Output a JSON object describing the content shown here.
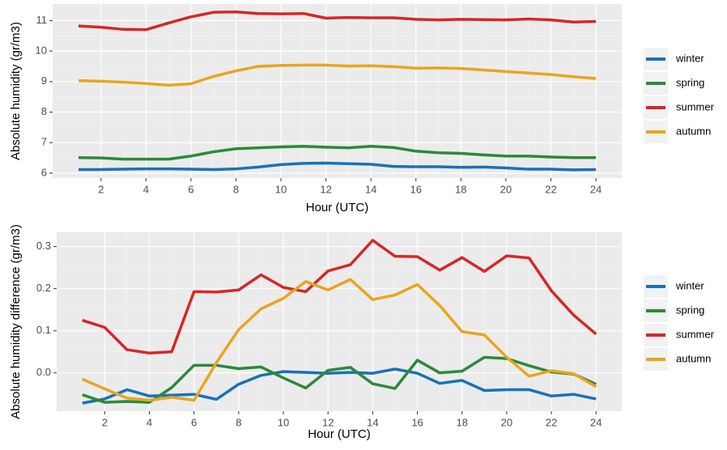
{
  "chart_data": [
    {
      "type": "line",
      "xlabel": "Hour (UTC)",
      "ylabel": "Absolute humidity (gr/m3)",
      "x": [
        1,
        2,
        3,
        4,
        5,
        6,
        7,
        8,
        9,
        10,
        11,
        12,
        13,
        14,
        15,
        16,
        17,
        18,
        19,
        20,
        21,
        22,
        23,
        24
      ],
      "xlim": [
        -0.15,
        25.15
      ],
      "xticks": [
        2,
        4,
        6,
        8,
        10,
        12,
        14,
        16,
        18,
        20,
        22,
        24
      ],
      "ylim": [
        5.84,
        11.54
      ],
      "yticks": [
        6,
        7,
        8,
        9,
        10,
        11
      ],
      "grid": true,
      "legend": "right",
      "series": [
        {
          "name": "winter",
          "color": "#1a72b8",
          "values": [
            6.12,
            6.12,
            6.13,
            6.14,
            6.14,
            6.13,
            6.12,
            6.14,
            6.2,
            6.28,
            6.32,
            6.33,
            6.31,
            6.29,
            6.22,
            6.21,
            6.21,
            6.19,
            6.2,
            6.17,
            6.13,
            6.13,
            6.11,
            6.12
          ]
        },
        {
          "name": "spring",
          "color": "#2a8a3a",
          "values": [
            6.51,
            6.5,
            6.46,
            6.46,
            6.46,
            6.56,
            6.7,
            6.8,
            6.83,
            6.86,
            6.88,
            6.85,
            6.83,
            6.88,
            6.84,
            6.72,
            6.67,
            6.65,
            6.6,
            6.56,
            6.56,
            6.53,
            6.51,
            6.51
          ]
        },
        {
          "name": "summer",
          "color": "#d62728",
          "values": [
            10.82,
            10.78,
            10.71,
            10.7,
            10.92,
            11.12,
            11.27,
            11.28,
            11.23,
            11.22,
            11.23,
            11.08,
            11.1,
            11.09,
            11.09,
            11.04,
            11.02,
            11.04,
            11.03,
            11.02,
            11.05,
            11.02,
            10.95,
            10.97
          ]
        },
        {
          "name": "autumn",
          "color": "#e8a521",
          "values": [
            9.03,
            9.01,
            8.98,
            8.94,
            8.88,
            8.93,
            9.17,
            9.35,
            9.5,
            9.53,
            9.54,
            9.54,
            9.51,
            9.52,
            9.49,
            9.44,
            9.45,
            9.43,
            9.38,
            9.33,
            9.28,
            9.23,
            9.16,
            9.1
          ]
        }
      ]
    },
    {
      "type": "line",
      "xlabel": "Hour (UTC)",
      "ylabel": "Absolute humidity difference (gr/m3)",
      "x": [
        1,
        2,
        3,
        4,
        5,
        6,
        7,
        8,
        9,
        10,
        11,
        12,
        13,
        14,
        15,
        16,
        17,
        18,
        19,
        20,
        21,
        22,
        23,
        24
      ],
      "xlim": [
        -0.15,
        25.15
      ],
      "xticks": [
        2,
        4,
        6,
        8,
        10,
        12,
        14,
        16,
        18,
        20,
        22,
        24
      ],
      "ylim": [
        -0.091,
        0.334
      ],
      "yticks": [
        {
          "value": 0,
          "label": "0.0"
        },
        0.1,
        0.2,
        0.3
      ],
      "grid": true,
      "legend": "right",
      "series": [
        {
          "name": "winter",
          "color": "#1a72b8",
          "values": [
            -0.072,
            -0.062,
            -0.04,
            -0.055,
            -0.053,
            -0.051,
            -0.063,
            -0.027,
            -0.006,
            0.003,
            0.001,
            -0.001,
            0.001,
            -0.001,
            0.009,
            -0.001,
            -0.025,
            -0.018,
            -0.042,
            -0.04,
            -0.04,
            -0.055,
            -0.051,
            -0.062
          ]
        },
        {
          "name": "spring",
          "color": "#2a8a3a",
          "values": [
            -0.052,
            -0.07,
            -0.068,
            -0.07,
            -0.035,
            0.018,
            0.018,
            0.01,
            0.014,
            -0.012,
            -0.036,
            0.006,
            0.013,
            -0.026,
            -0.037,
            0.03,
            0.0,
            0.004,
            0.037,
            0.034,
            0.017,
            0.002,
            -0.003,
            -0.027
          ]
        },
        {
          "name": "summer",
          "color": "#d62728",
          "values": [
            0.125,
            0.108,
            0.055,
            0.047,
            0.05,
            0.193,
            0.192,
            0.197,
            0.233,
            0.203,
            0.193,
            0.242,
            0.257,
            0.315,
            0.277,
            0.276,
            0.244,
            0.274,
            0.241,
            0.278,
            0.273,
            0.195,
            0.137,
            0.092
          ]
        },
        {
          "name": "autumn",
          "color": "#e8a521",
          "values": [
            -0.015,
            -0.038,
            -0.06,
            -0.065,
            -0.058,
            -0.065,
            0.024,
            0.103,
            0.152,
            0.177,
            0.217,
            0.197,
            0.222,
            0.174,
            0.185,
            0.21,
            0.16,
            0.098,
            0.09,
            0.037,
            -0.008,
            0.005,
            -0.002,
            -0.033
          ]
        }
      ]
    }
  ]
}
